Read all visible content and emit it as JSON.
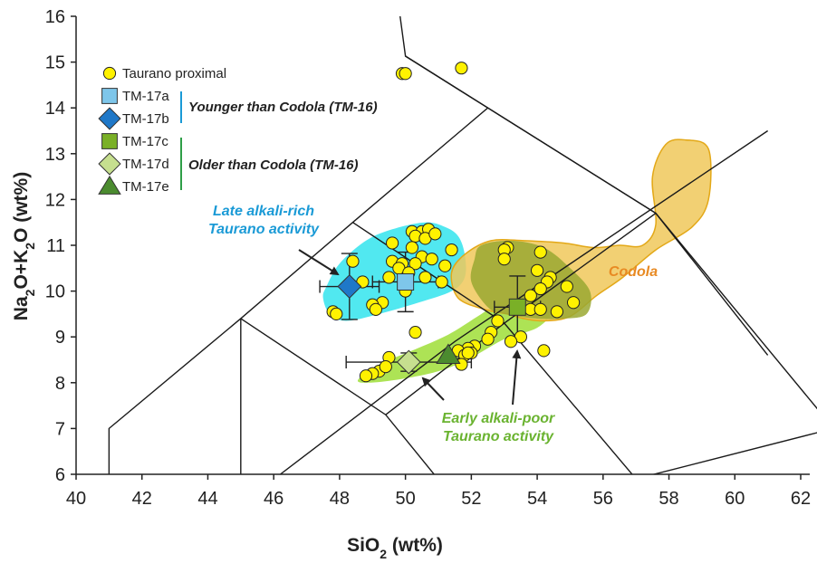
{
  "chart_data": {
    "type": "scatter",
    "xlabel": "SiO₂ (wt%)",
    "ylabel": "Na₂O+K₂O (wt%)",
    "xlim": [
      40,
      62
    ],
    "ylim": [
      6,
      16
    ],
    "xticks": [
      40,
      42,
      44,
      46,
      48,
      50,
      52,
      54,
      56,
      58,
      60,
      62
    ],
    "yticks": [
      6,
      7,
      8,
      9,
      10,
      11,
      12,
      13,
      14,
      15,
      16
    ],
    "grid": false,
    "legend_position": "top-left",
    "colors": {
      "proximal": "#fff200",
      "tm17a": "#7ec6ea",
      "tm17b": "#1f78c8",
      "tm17c": "#7ab027",
      "tm17d": "#c6df8f",
      "tm17e": "#4b8b2f",
      "late_field": "#3ee6ee",
      "early_field": "#a4e043",
      "codola_field": "#f0c85a",
      "late_text": "#1a9ad6",
      "early_text": "#6ab330",
      "codola_text": "#e88a23"
    },
    "tas_boundaries": [
      [
        [
          41,
          6
        ],
        [
          41,
          7
        ],
        [
          45,
          9.4
        ],
        [
          48.4,
          11.5
        ],
        [
          52.5,
          14
        ],
        [
          57.6,
          11.7
        ],
        [
          61,
          8.6
        ]
      ],
      [
        [
          45,
          6
        ],
        [
          45,
          9.4
        ]
      ],
      [
        [
          45,
          9.4
        ],
        [
          49.4,
          7.3
        ],
        [
          52,
          5
        ]
      ],
      [
        [
          49.4,
          7.3
        ],
        [
          53,
          9.3
        ],
        [
          57,
          5.9
        ]
      ],
      [
        [
          48.4,
          11.5
        ],
        [
          53,
          9.3
        ]
      ],
      [
        [
          53,
          9.3
        ],
        [
          57.6,
          11.7
        ]
      ],
      [
        [
          57.6,
          11.7
        ],
        [
          63,
          7
        ]
      ],
      [
        [
          52.5,
          14
        ],
        [
          50,
          15.13
        ],
        [
          49.8,
          16.2
        ]
      ],
      [
        [
          57.6,
          11.7
        ],
        [
          50,
          15.13
        ]
      ],
      [
        [
          57,
          5.9
        ],
        [
          63,
          7
        ]
      ],
      [
        [
          46.2,
          6
        ],
        [
          51.5,
          8.9
        ],
        [
          61,
          13.5
        ]
      ]
    ],
    "series": [
      {
        "name": "Taurano proximal",
        "marker": "circle",
        "points": [
          [
            49.9,
            14.75
          ],
          [
            50.0,
            14.75
          ],
          [
            51.7,
            14.87
          ],
          [
            50.2,
            11.3
          ],
          [
            50.5,
            11.3
          ],
          [
            50.7,
            11.35
          ],
          [
            50.3,
            11.2
          ],
          [
            50.6,
            11.15
          ],
          [
            50.9,
            11.25
          ],
          [
            49.6,
            11.05
          ],
          [
            50.2,
            10.95
          ],
          [
            51.4,
            10.9
          ],
          [
            50.5,
            10.75
          ],
          [
            50.8,
            10.7
          ],
          [
            49.6,
            10.65
          ],
          [
            49.9,
            10.6
          ],
          [
            48.4,
            10.65
          ],
          [
            50.3,
            10.6
          ],
          [
            51.2,
            10.55
          ],
          [
            49.8,
            10.5
          ],
          [
            50.1,
            10.4
          ],
          [
            49.5,
            10.3
          ],
          [
            48.7,
            10.2
          ],
          [
            50.6,
            10.3
          ],
          [
            51.1,
            10.2
          ],
          [
            50.0,
            10.0
          ],
          [
            49.3,
            9.75
          ],
          [
            49.0,
            9.7
          ],
          [
            49.1,
            9.6
          ],
          [
            47.8,
            9.55
          ],
          [
            47.9,
            9.5
          ],
          [
            50.3,
            9.1
          ],
          [
            49.5,
            8.55
          ],
          [
            49.2,
            8.25
          ],
          [
            49.4,
            8.35
          ],
          [
            49.0,
            8.2
          ],
          [
            48.8,
            8.15
          ],
          [
            53.1,
            10.95
          ],
          [
            53.0,
            10.9
          ],
          [
            54.1,
            10.85
          ],
          [
            53.0,
            10.7
          ],
          [
            54.0,
            10.45
          ],
          [
            54.4,
            10.3
          ],
          [
            54.3,
            10.2
          ],
          [
            54.9,
            10.1
          ],
          [
            54.1,
            10.05
          ],
          [
            53.8,
            9.9
          ],
          [
            53.8,
            9.6
          ],
          [
            54.1,
            9.6
          ],
          [
            54.6,
            9.55
          ],
          [
            55.1,
            9.75
          ],
          [
            52.8,
            9.35
          ],
          [
            52.6,
            9.1
          ],
          [
            53.5,
            9.0
          ],
          [
            52.5,
            8.95
          ],
          [
            53.2,
            8.9
          ],
          [
            52.1,
            8.8
          ],
          [
            51.9,
            8.75
          ],
          [
            51.6,
            8.7
          ],
          [
            52.0,
            8.65
          ],
          [
            51.8,
            8.6
          ],
          [
            51.9,
            8.65
          ],
          [
            54.2,
            8.7
          ],
          [
            51.7,
            8.4
          ]
        ]
      },
      {
        "name": "TM-17a",
        "marker": "square",
        "points": [
          [
            50.0,
            10.2
          ]
        ],
        "xerr": 1.0,
        "yerr": 0.65
      },
      {
        "name": "TM-17b",
        "marker": "diamond",
        "points": [
          [
            48.3,
            10.1
          ]
        ],
        "xerr": 0.9,
        "yerr": 0.72
      },
      {
        "name": "TM-17c",
        "marker": "square",
        "points": [
          [
            53.4,
            9.65
          ]
        ],
        "xerr": 0.7,
        "yerr": 0.68
      },
      {
        "name": "TM-17d",
        "marker": "diamond",
        "points": [
          [
            50.1,
            8.45
          ]
        ],
        "xerr": 1.9,
        "yerr": 0.2
      },
      {
        "name": "TM-17e",
        "marker": "triangle",
        "points": [
          [
            51.3,
            8.6
          ]
        ]
      }
    ],
    "fields": [
      {
        "name": "late",
        "polygon": [
          [
            47.6,
            10.1
          ],
          [
            48.0,
            10.6
          ],
          [
            48.8,
            11.1
          ],
          [
            49.6,
            11.35
          ],
          [
            50.6,
            11.5
          ],
          [
            51.2,
            11.4
          ],
          [
            51.6,
            11.2
          ],
          [
            51.8,
            10.8
          ],
          [
            51.8,
            10.3
          ],
          [
            51.4,
            10.0
          ],
          [
            50.4,
            9.75
          ],
          [
            49.2,
            9.5
          ],
          [
            48.2,
            9.35
          ],
          [
            47.7,
            9.5
          ],
          [
            47.5,
            9.85
          ]
        ]
      },
      {
        "name": "early",
        "polygon": [
          [
            48.6,
            8.1
          ],
          [
            49.2,
            8.4
          ],
          [
            50.2,
            8.7
          ],
          [
            51.3,
            9.05
          ],
          [
            52.2,
            9.45
          ],
          [
            53.0,
            9.8
          ],
          [
            53.9,
            9.85
          ],
          [
            54.4,
            9.55
          ],
          [
            54.0,
            9.2
          ],
          [
            53.0,
            8.95
          ],
          [
            52.0,
            8.55
          ],
          [
            51.0,
            8.25
          ],
          [
            49.6,
            8.05
          ],
          [
            48.7,
            8.0
          ]
        ]
      },
      {
        "name": "codola",
        "polygon": [
          [
            51.4,
            10.4
          ],
          [
            51.8,
            10.8
          ],
          [
            52.6,
            11.1
          ],
          [
            53.6,
            11.1
          ],
          [
            54.8,
            11.05
          ],
          [
            55.7,
            10.95
          ],
          [
            56.5,
            11.0
          ],
          [
            57.2,
            11.0
          ],
          [
            57.6,
            11.45
          ],
          [
            57.5,
            12.5
          ],
          [
            57.9,
            13.2
          ],
          [
            58.5,
            13.3
          ],
          [
            59.2,
            13.1
          ],
          [
            59.2,
            12.0
          ],
          [
            58.7,
            11.4
          ],
          [
            57.6,
            10.9
          ],
          [
            56.6,
            10.3
          ],
          [
            55.8,
            9.9
          ],
          [
            55.0,
            9.45
          ],
          [
            54.2,
            9.35
          ],
          [
            53.6,
            9.4
          ],
          [
            53.1,
            9.5
          ],
          [
            52.4,
            9.6
          ],
          [
            51.6,
            9.85
          ]
        ]
      },
      {
        "name": "overlap",
        "polygon": [
          [
            51.45,
            10.4
          ],
          [
            51.8,
            10.8
          ],
          [
            51.6,
            11.2
          ],
          [
            51.8,
            10.3
          ]
        ]
      },
      {
        "name": "early-codola-overlap",
        "polygon": [
          [
            52.3,
            11.0
          ],
          [
            53.2,
            11.1
          ],
          [
            54.2,
            10.95
          ],
          [
            55.0,
            10.5
          ],
          [
            55.6,
            10.0
          ],
          [
            55.5,
            9.5
          ],
          [
            54.8,
            9.4
          ],
          [
            54.0,
            9.4
          ],
          [
            53.0,
            9.5
          ],
          [
            52.5,
            9.65
          ],
          [
            52.0,
            10.2
          ],
          [
            52.1,
            10.7
          ]
        ]
      }
    ],
    "legend": [
      {
        "label": "Taurano proximal",
        "marker": "circle",
        "color": "#fff200"
      },
      {
        "label": "TM-17a",
        "marker": "square",
        "color": "#7ec6ea"
      },
      {
        "label": "TM-17b",
        "marker": "diamond",
        "color": "#1f78c8"
      },
      {
        "label": "TM-17c",
        "marker": "square",
        "color": "#7ab027"
      },
      {
        "label": "TM-17d",
        "marker": "diamond",
        "color": "#c6df8f"
      },
      {
        "label": "TM-17e",
        "marker": "triangle",
        "color": "#4b8b2f"
      }
    ],
    "legend_groups": [
      {
        "label": "Younger than Codola (TM-16)",
        "color": "#1a9ad6"
      },
      {
        "label": "Older than Codola (TM-16)",
        "color": "#2e9e48"
      }
    ],
    "annotations": {
      "late_line1": "Late alkali-rich",
      "late_line2": "Taurano activity",
      "early_line1": "Early alkali-poor",
      "early_line2": "Taurano activity",
      "codola": "Codola"
    }
  }
}
